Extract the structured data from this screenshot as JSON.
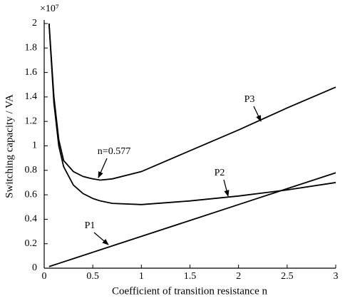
{
  "chart_data": {
    "type": "line",
    "xlabel": "Coefficient of transition resistance n",
    "ylabel": "Switching capacity / VA",
    "y_multiplier": "×10⁷",
    "x": [
      0.05,
      0.1,
      0.15,
      0.2,
      0.3,
      0.4,
      0.5,
      0.577,
      0.7,
      1,
      1.5,
      2,
      2.5,
      3
    ],
    "series": [
      {
        "name": "P1",
        "color": "#000000",
        "values": [
          0.013,
          0.026,
          0.039,
          0.052,
          0.078,
          0.104,
          0.13,
          0.15,
          0.182,
          0.26,
          0.39,
          0.52,
          0.65,
          0.78
        ]
      },
      {
        "name": "P2",
        "color": "#000000",
        "values": [
          2,
          1.35,
          1.0,
          0.83,
          0.68,
          0.61,
          0.57,
          0.55,
          0.53,
          0.52,
          0.55,
          0.59,
          0.64,
          0.7
        ]
      },
      {
        "name": "P3",
        "color": "#000000",
        "values": [
          2,
          1.4,
          1.05,
          0.88,
          0.79,
          0.75,
          0.73,
          0.72,
          0.73,
          0.79,
          0.96,
          1.13,
          1.31,
          1.48
        ]
      }
    ],
    "annotations": [
      "n=0.577"
    ],
    "xlim": [
      0,
      3
    ],
    "ylim": [
      0,
      2
    ],
    "xticks": [
      0,
      0.5,
      1,
      1.5,
      2,
      2.5,
      3
    ],
    "yticks": [
      0,
      0.2,
      0.4,
      0.6,
      0.8,
      1,
      1.2,
      1.4,
      1.6,
      1.8,
      2
    ],
    "grid": false
  }
}
